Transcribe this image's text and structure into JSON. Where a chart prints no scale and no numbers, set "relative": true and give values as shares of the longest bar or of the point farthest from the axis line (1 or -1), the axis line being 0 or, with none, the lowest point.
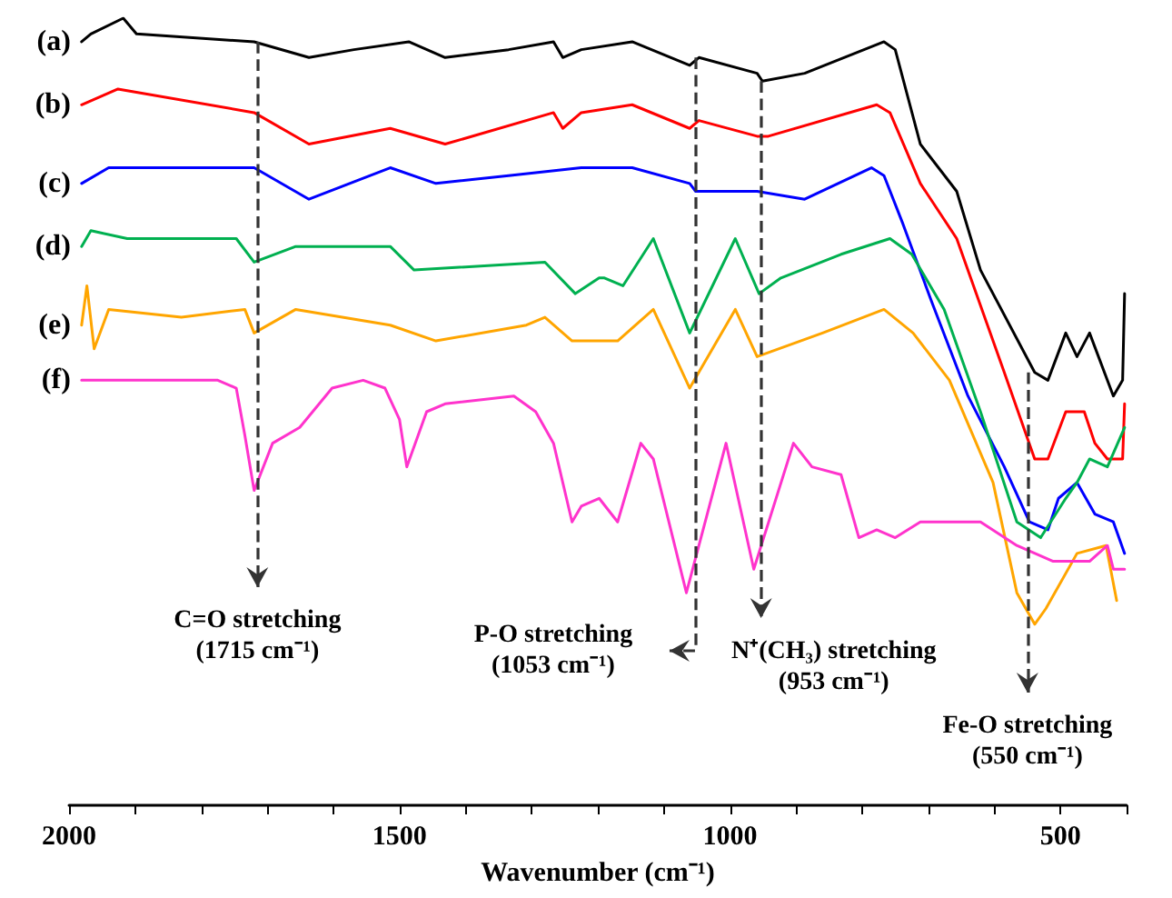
{
  "chart_data": {
    "type": "line",
    "relative": true,
    "xlabel": "Wavenumber (cm⁻¹)",
    "xlim": [
      2000,
      400
    ],
    "xticks": [
      2000,
      {
        "value": 1900,
        "label": null
      },
      {
        "value": 1800,
        "label": null
      },
      {
        "value": 1700,
        "label": null
      },
      {
        "value": 1600,
        "label": null
      },
      1500,
      {
        "value": 1400,
        "label": null
      },
      {
        "value": 1300,
        "label": null
      },
      {
        "value": 1200,
        "label": null
      },
      {
        "value": 1100,
        "label": null
      },
      1000,
      {
        "value": 900,
        "label": null
      },
      {
        "value": 800,
        "label": null
      },
      {
        "value": 700,
        "label": null
      },
      {
        "value": 600,
        "label": null
      },
      500,
      {
        "value": 400,
        "label": null
      }
    ],
    "tick_labels": "x",
    "marker": "none",
    "series": [
      {
        "name": "(a)",
        "color": "#000000",
        "x": [
          1981,
          1967,
          1918,
          1898,
          1720,
          1637,
          1569,
          1486,
          1431,
          1335,
          1267,
          1253,
          1225,
          1148,
          1061,
          1047,
          959,
          951,
          887,
          767,
          750,
          712,
          657,
          621,
          539,
          519,
          492,
          475,
          456,
          420,
          406,
          403
        ],
        "values": [
          0.97,
          0.98,
          1.0,
          0.98,
          0.97,
          0.95,
          0.96,
          0.97,
          0.95,
          0.96,
          0.97,
          0.95,
          0.96,
          0.97,
          0.94,
          0.95,
          0.93,
          0.92,
          0.93,
          0.97,
          0.96,
          0.84,
          0.78,
          0.68,
          0.55,
          0.54,
          0.6,
          0.57,
          0.6,
          0.52,
          0.54,
          0.65
        ]
      },
      {
        "name": "(b)",
        "color": "#ff0000",
        "x": [
          1981,
          1926,
          1720,
          1637,
          1514,
          1431,
          1267,
          1253,
          1225,
          1148,
          1061,
          1047,
          959,
          942,
          778,
          758,
          712,
          657,
          585,
          539,
          519,
          492,
          475,
          464,
          448,
          429,
          406,
          403
        ],
        "values": [
          0.89,
          0.91,
          0.88,
          0.84,
          0.86,
          0.84,
          0.88,
          0.86,
          0.88,
          0.89,
          0.86,
          0.87,
          0.85,
          0.85,
          0.89,
          0.88,
          0.79,
          0.72,
          0.55,
          0.44,
          0.44,
          0.5,
          0.5,
          0.5,
          0.46,
          0.44,
          0.44,
          0.51
        ]
      },
      {
        "name": "(c)",
        "color": "#0000ff",
        "x": [
          1981,
          1940,
          1720,
          1637,
          1514,
          1445,
          1335,
          1225,
          1148,
          1061,
          1052,
          959,
          887,
          786,
          767,
          739,
          695,
          640,
          585,
          547,
          519,
          503,
          475,
          448,
          420,
          403
        ],
        "values": [
          0.79,
          0.81,
          0.81,
          0.77,
          0.81,
          0.79,
          0.8,
          0.81,
          0.81,
          0.79,
          0.78,
          0.78,
          0.77,
          0.81,
          0.8,
          0.74,
          0.64,
          0.52,
          0.43,
          0.36,
          0.35,
          0.39,
          0.41,
          0.37,
          0.36,
          0.32
        ]
      },
      {
        "name": "(d)",
        "color": "#00b050",
        "x": [
          1981,
          1967,
          1912,
          1747,
          1720,
          1657,
          1514,
          1478,
          1280,
          1234,
          1198,
          1190,
          1162,
          1116,
          1061,
          992,
          956,
          923,
          832,
          758,
          725,
          676,
          621,
          566,
          530,
          492,
          475,
          456,
          429,
          403
        ],
        "values": [
          0.71,
          0.73,
          0.72,
          0.72,
          0.69,
          0.71,
          0.71,
          0.68,
          0.69,
          0.65,
          0.67,
          0.67,
          0.66,
          0.72,
          0.6,
          0.72,
          0.65,
          0.67,
          0.7,
          0.72,
          0.7,
          0.63,
          0.5,
          0.36,
          0.34,
          0.39,
          0.41,
          0.44,
          0.43,
          0.48
        ]
      },
      {
        "name": "(e)",
        "color": "#ffa500",
        "x": [
          1981,
          1973,
          1962,
          1940,
          1830,
          1734,
          1720,
          1657,
          1514,
          1445,
          1308,
          1280,
          1239,
          1198,
          1170,
          1116,
          1061,
          992,
          959,
          860,
          767,
          723,
          668,
          602,
          566,
          539,
          522,
          475,
          431,
          415
        ],
        "values": [
          0.61,
          0.66,
          0.58,
          0.63,
          0.62,
          0.63,
          0.6,
          0.63,
          0.61,
          0.59,
          0.61,
          0.62,
          0.59,
          0.59,
          0.59,
          0.63,
          0.53,
          0.63,
          0.57,
          0.6,
          0.63,
          0.6,
          0.54,
          0.41,
          0.27,
          0.23,
          0.25,
          0.32,
          0.33,
          0.26
        ]
      },
      {
        "name": "(f)",
        "color": "#ff33cc",
        "x": [
          1981,
          1940,
          1775,
          1747,
          1734,
          1720,
          1692,
          1651,
          1602,
          1555,
          1522,
          1500,
          1489,
          1459,
          1431,
          1327,
          1294,
          1267,
          1239,
          1225,
          1198,
          1170,
          1135,
          1116,
          1066,
          1006,
          964,
          904,
          876,
          832,
          805,
          778,
          750,
          712,
          621,
          566,
          511,
          456,
          429,
          420,
          403
        ],
        "values": [
          0.54,
          0.54,
          0.54,
          0.53,
          0.47,
          0.4,
          0.46,
          0.48,
          0.53,
          0.54,
          0.53,
          0.49,
          0.43,
          0.5,
          0.51,
          0.52,
          0.5,
          0.46,
          0.36,
          0.38,
          0.39,
          0.36,
          0.46,
          0.44,
          0.27,
          0.46,
          0.3,
          0.46,
          0.43,
          0.42,
          0.34,
          0.35,
          0.34,
          0.36,
          0.36,
          0.33,
          0.31,
          0.31,
          0.33,
          0.3,
          0.3
        ]
      }
    ],
    "ref_lines": [
      {
        "axis": "x",
        "value": 1715,
        "label": "C=O stretching\n(1715 cm⁻¹)",
        "line_style": "dashed"
      },
      {
        "axis": "x",
        "value": 1053,
        "label": "P-O stretching\n(1053 cm⁻¹)",
        "line_style": "dashed"
      },
      {
        "axis": "x",
        "value": 953,
        "label": "N⁺(CH₃) stretching\n(953 cm⁻¹)",
        "line_style": "dashed"
      },
      {
        "axis": "x",
        "value": 550,
        "label": "Fe-O stretching\n(550 cm⁻¹)",
        "line_style": "dashed"
      }
    ]
  }
}
